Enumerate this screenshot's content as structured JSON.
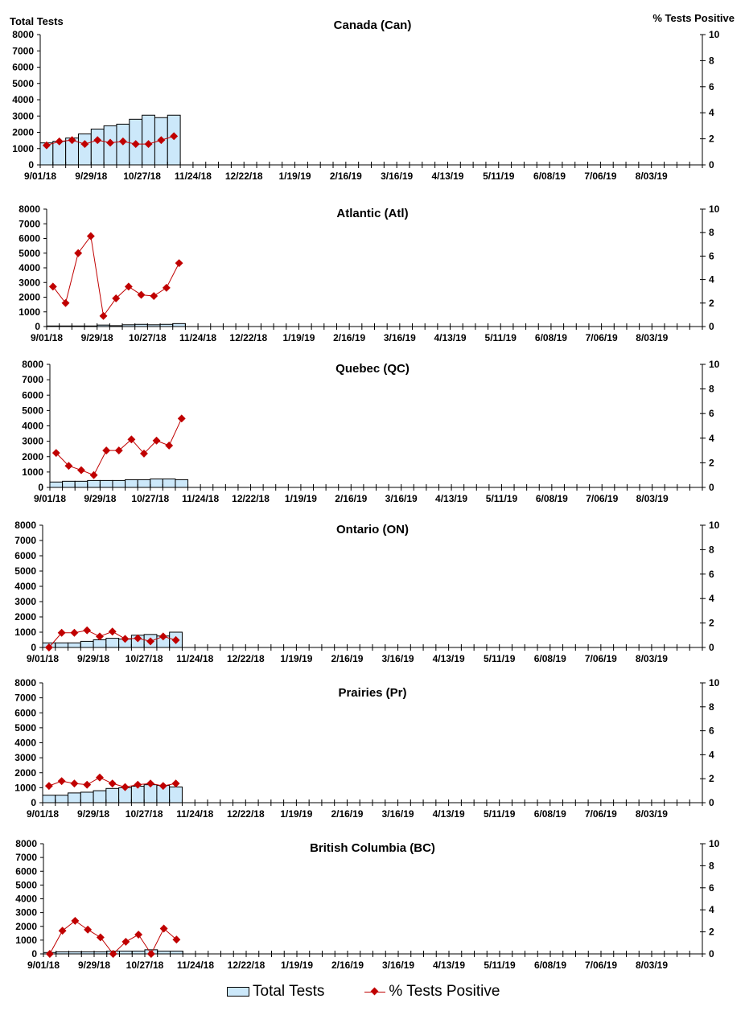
{
  "chart_data": [
    {
      "type": "bar+line",
      "title": "Canada (Can)",
      "ylabel": "Total Tests",
      "y2label": "% Tests Positive",
      "total_tests": [
        1350,
        1450,
        1650,
        1900,
        2200,
        2400,
        2500,
        2800,
        3050,
        2900,
        3050
      ],
      "pct_positive": [
        1.5,
        1.8,
        1.9,
        1.6,
        1.9,
        1.7,
        1.8,
        1.6,
        1.6,
        1.9,
        2.2
      ]
    },
    {
      "type": "bar+line",
      "title": "Atlantic (Atl)",
      "total_tests": [
        40,
        40,
        40,
        40,
        100,
        60,
        120,
        150,
        120,
        150,
        200
      ],
      "pct_positive": [
        3.4,
        2.0,
        6.25,
        7.7,
        0.9,
        2.4,
        3.4,
        2.7,
        2.6,
        3.3,
        5.4
      ]
    },
    {
      "type": "bar+line",
      "title": "Quebec (QC)",
      "total_tests": [
        350,
        400,
        400,
        450,
        450,
        450,
        500,
        500,
        550,
        550,
        500
      ],
      "pct_positive": [
        2.8,
        1.75,
        1.4,
        1.0,
        3.0,
        3.0,
        3.9,
        2.75,
        3.8,
        3.4,
        5.6
      ]
    },
    {
      "type": "bar+line",
      "title": "Ontario (ON)",
      "total_tests": [
        300,
        300,
        300,
        400,
        500,
        600,
        550,
        800,
        850,
        750,
        1000
      ],
      "pct_positive": [
        0,
        1.2,
        1.2,
        1.4,
        0.9,
        1.3,
        0.7,
        0.75,
        0.5,
        0.9,
        0.6
      ]
    },
    {
      "type": "bar+line",
      "title": "Prairies (Pr)",
      "total_tests": [
        500,
        500,
        650,
        700,
        800,
        950,
        1000,
        1100,
        1200,
        1150,
        1050
      ],
      "pct_positive": [
        1.4,
        1.8,
        1.6,
        1.5,
        2.1,
        1.6,
        1.3,
        1.5,
        1.6,
        1.4,
        1.6
      ]
    },
    {
      "type": "bar+line",
      "title": "British Columbia (BC)",
      "total_tests": [
        100,
        150,
        150,
        150,
        150,
        200,
        200,
        200,
        300,
        200,
        200
      ],
      "pct_positive": [
        0,
        2.1,
        3.0,
        2.2,
        1.5,
        0,
        1.1,
        1.75,
        0,
        2.3,
        1.3
      ]
    }
  ],
  "shared": {
    "weeks_on_axis": 52,
    "x_tick_labels": [
      "9/01/18",
      "9/29/18",
      "10/27/18",
      "11/24/18",
      "12/22/18",
      "1/19/19",
      "2/16/19",
      "3/16/19",
      "4/13/19",
      "5/11/19",
      "6/08/19",
      "7/06/19",
      "8/03/19"
    ],
    "y_ticks": [
      "0",
      "1000",
      "2000",
      "3000",
      "4000",
      "5000",
      "6000",
      "7000",
      "8000"
    ],
    "y2_ticks": [
      "0",
      "2",
      "4",
      "6",
      "8",
      "10"
    ],
    "ylim": [
      0,
      8000
    ],
    "y2lim": [
      0,
      10
    ],
    "bar_color": "#cce8fa",
    "line_color": "#c00000"
  },
  "legend": {
    "bars": "Total Tests",
    "line": "% Tests Positive"
  }
}
